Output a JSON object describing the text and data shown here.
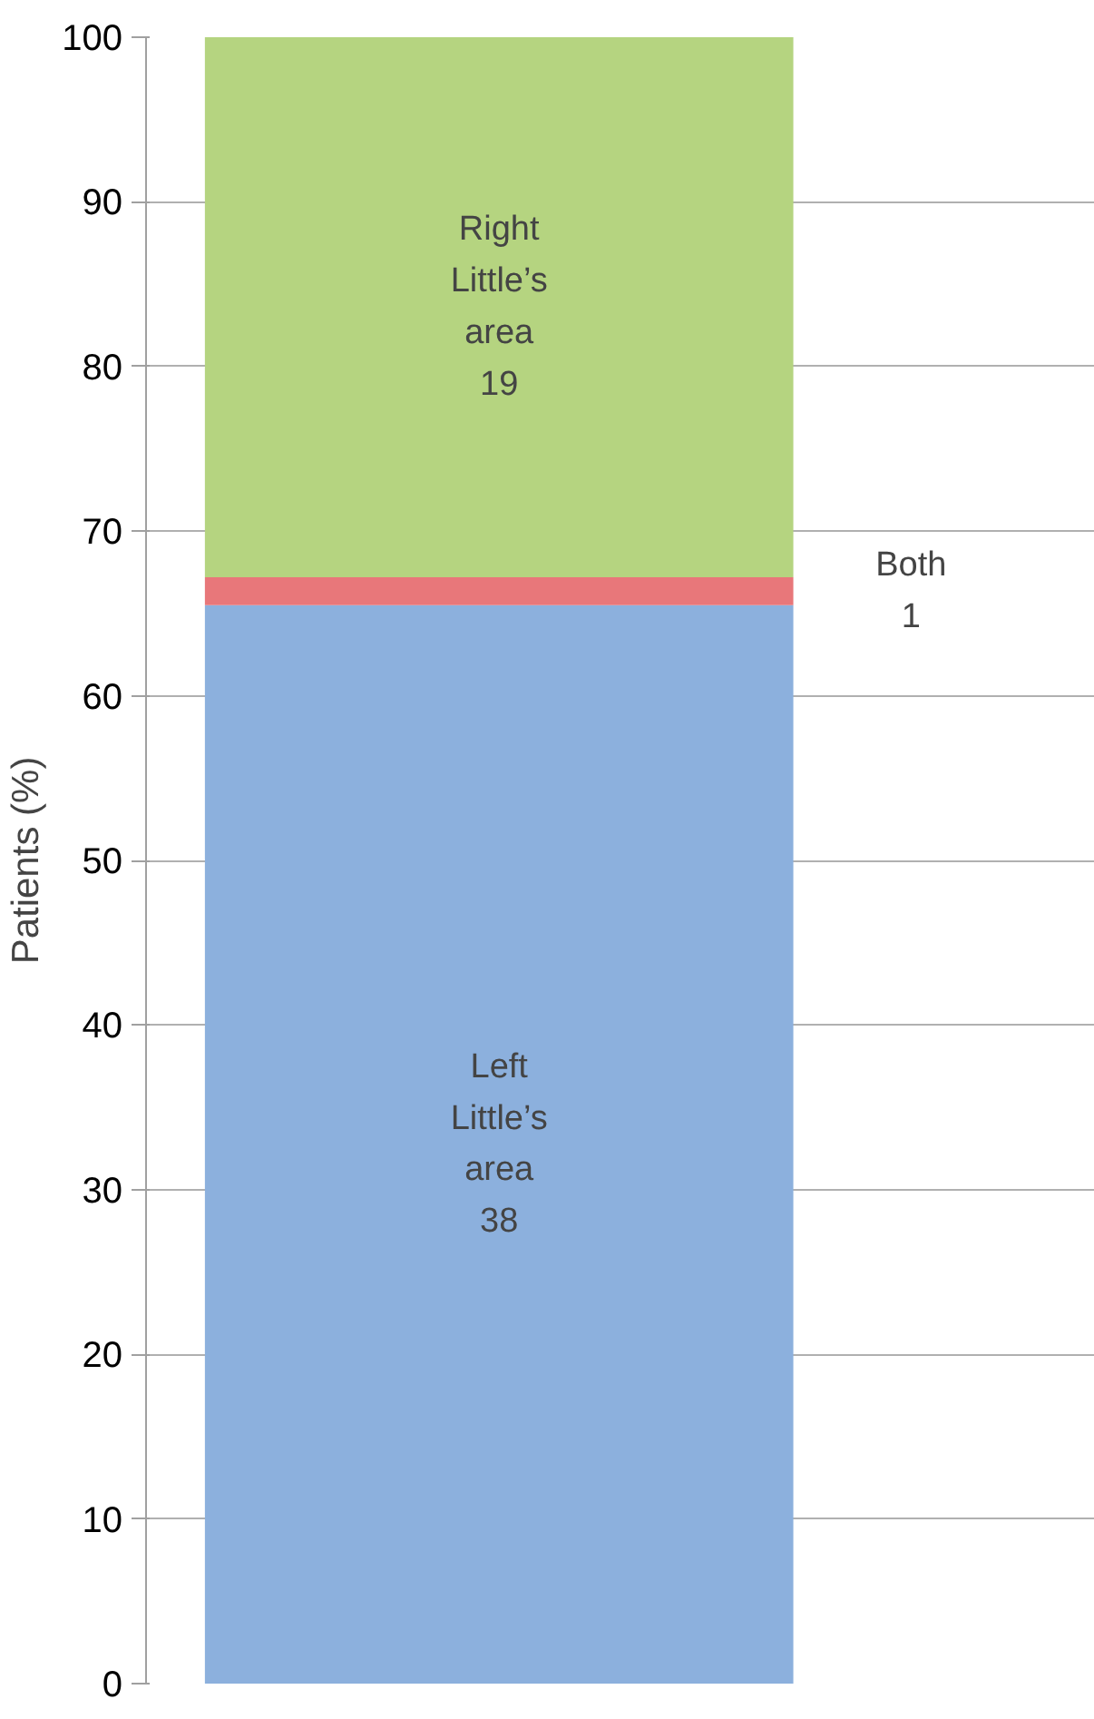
{
  "chart_data": {
    "type": "bar",
    "stacked": true,
    "categories": [
      null
    ],
    "ylabel": "Patients (%)",
    "ylim": [
      0,
      100
    ],
    "yticks": [
      0,
      10,
      20,
      30,
      40,
      50,
      60,
      70,
      80,
      90,
      100
    ],
    "grid": "y",
    "series": [
      {
        "color": "#8cb0dd",
        "values": [
          65.5
        ]
      },
      {
        "color": "#e8777a",
        "values": [
          1.7
        ]
      },
      {
        "color": "#b5d480",
        "values": [
          32.8
        ]
      }
    ],
    "annotations": [
      "Left Little’s area 38",
      "Both 1",
      "Right Little’s area 19"
    ]
  }
}
